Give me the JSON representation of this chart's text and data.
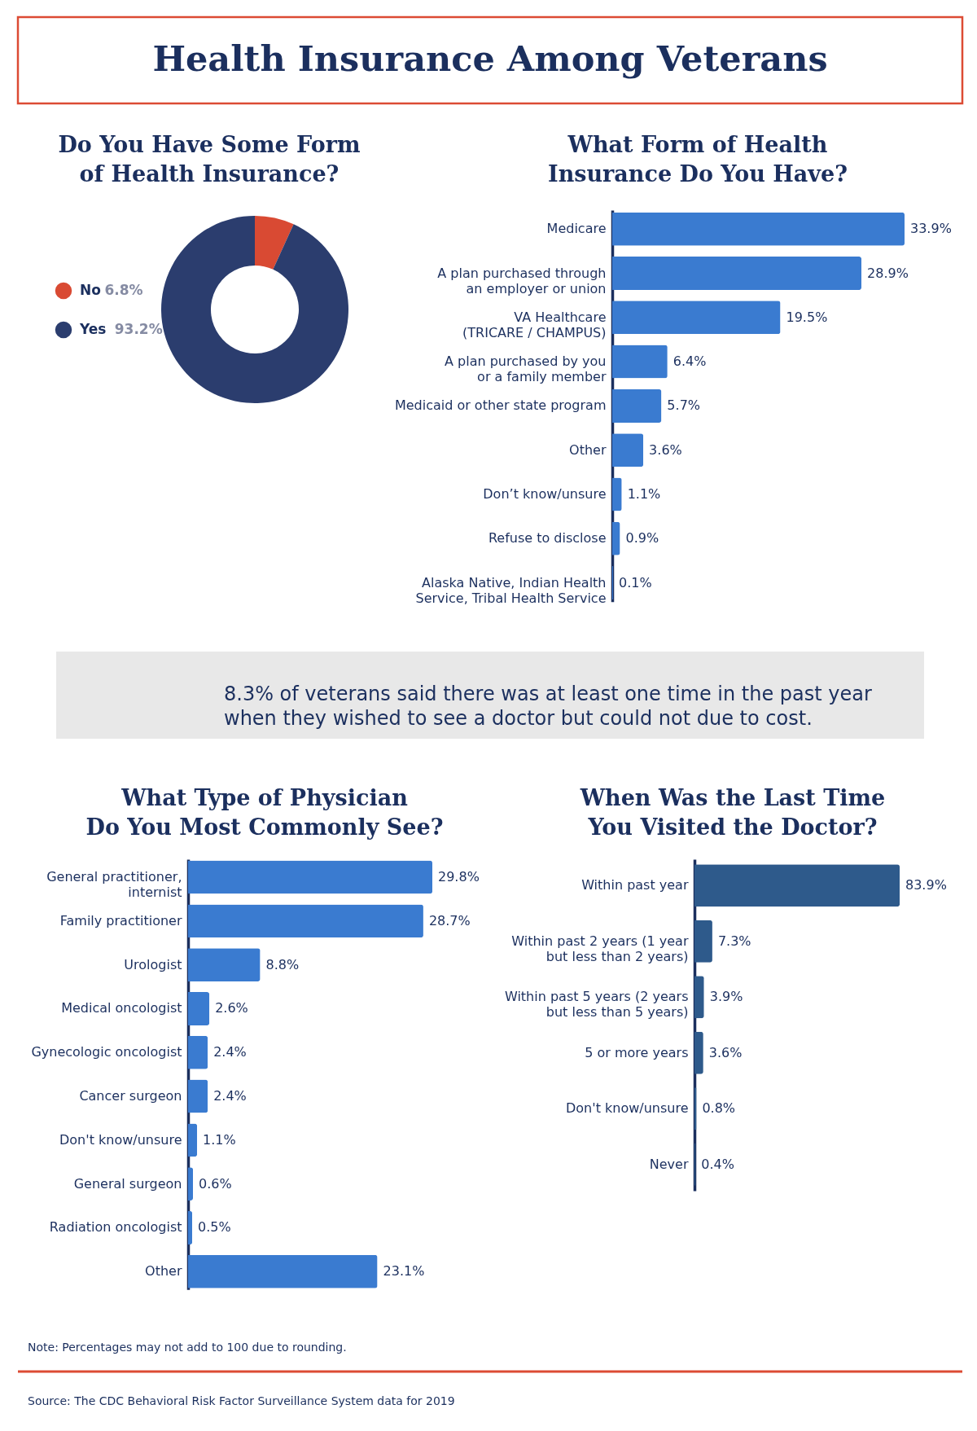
{
  "chart_data": [
    {
      "type": "other",
      "title": "Health Insurance Among Veterans"
    },
    {
      "type": "donut",
      "title": "Do You Have Some Form of Health Insurance?",
      "categories": [
        "No",
        "Yes"
      ],
      "values": [
        6.8,
        93.2
      ],
      "value_labels": [
        "6.8%",
        "93.2%"
      ],
      "colors": [
        "#d94a33",
        "#2b3d6e"
      ],
      "legend": "left"
    },
    {
      "type": "bar",
      "orientation": "horizontal",
      "title": "What Form of Health Insurance Do You Have?",
      "categories": [
        "Medicare",
        "A plan purchased through\nan employer or union",
        "VA Healthcare\n(TRICARE / CHAMPUS)",
        "A plan purchased by you\nor a family member",
        "Medicaid or other state program",
        "Other",
        "Don’t know/unsure",
        "Refuse to disclose",
        "Alaska Native, Indian Health\nService, Tribal Health Service"
      ],
      "values": [
        33.9,
        28.9,
        19.5,
        6.4,
        5.7,
        3.6,
        1.1,
        0.9,
        0.1
      ],
      "value_labels": [
        "33.9%",
        "28.9%",
        "19.5%",
        "6.4%",
        "5.7%",
        "3.6%",
        "1.1%",
        "0.9%",
        "0.1%"
      ],
      "color": "#3a7bd0",
      "tick_labels": "y"
    },
    {
      "type": "other",
      "annotations": [
        "8.3% of veterans said there was at least one time in the past year when they wished to see a doctor but could not due to cost."
      ]
    },
    {
      "type": "bar",
      "orientation": "horizontal",
      "title": "What Type of Physician Do You Most Commonly See?",
      "categories": [
        "General practitioner,\ninternist",
        "Family practitioner",
        "Urologist",
        "Medical oncologist",
        "Gynecologic oncologist",
        "Cancer surgeon",
        "Don't know/unsure",
        "General surgeon",
        "Radiation oncologist",
        "Other"
      ],
      "values": [
        29.8,
        28.7,
        8.8,
        2.6,
        2.4,
        2.4,
        1.1,
        0.6,
        0.5,
        23.1
      ],
      "value_labels": [
        "29.8%",
        "28.7%",
        "8.8%",
        "2.6%",
        "2.4%",
        "2.4%",
        "1.1%",
        "0.6%",
        "0.5%",
        "23.1%"
      ],
      "color": "#3a7bd0",
      "tick_labels": "y"
    },
    {
      "type": "bar",
      "orientation": "horizontal",
      "title": "When Was the Last Time You Visited the Doctor?",
      "categories": [
        "Within past year",
        "Within past 2 years (1 year\nbut less than 2 years)",
        "Within past 5 years (2 years\nbut less than 5 years)",
        "5 or more years",
        "Don't know/unsure",
        "Never"
      ],
      "values": [
        83.9,
        7.3,
        3.9,
        3.6,
        0.8,
        0.4
      ],
      "value_labels": [
        "83.9%",
        "7.3%",
        "3.9%",
        "3.6%",
        "0.8%",
        "0.4%"
      ],
      "color": "#2e5a8b",
      "tick_labels": "y"
    },
    {
      "type": "other",
      "annotations": [
        "Note: Percentages may not add to 100 due to rounding.",
        "Source: The CDC Behavioral Risk Factor Surveillance System data for 2019"
      ]
    }
  ]
}
